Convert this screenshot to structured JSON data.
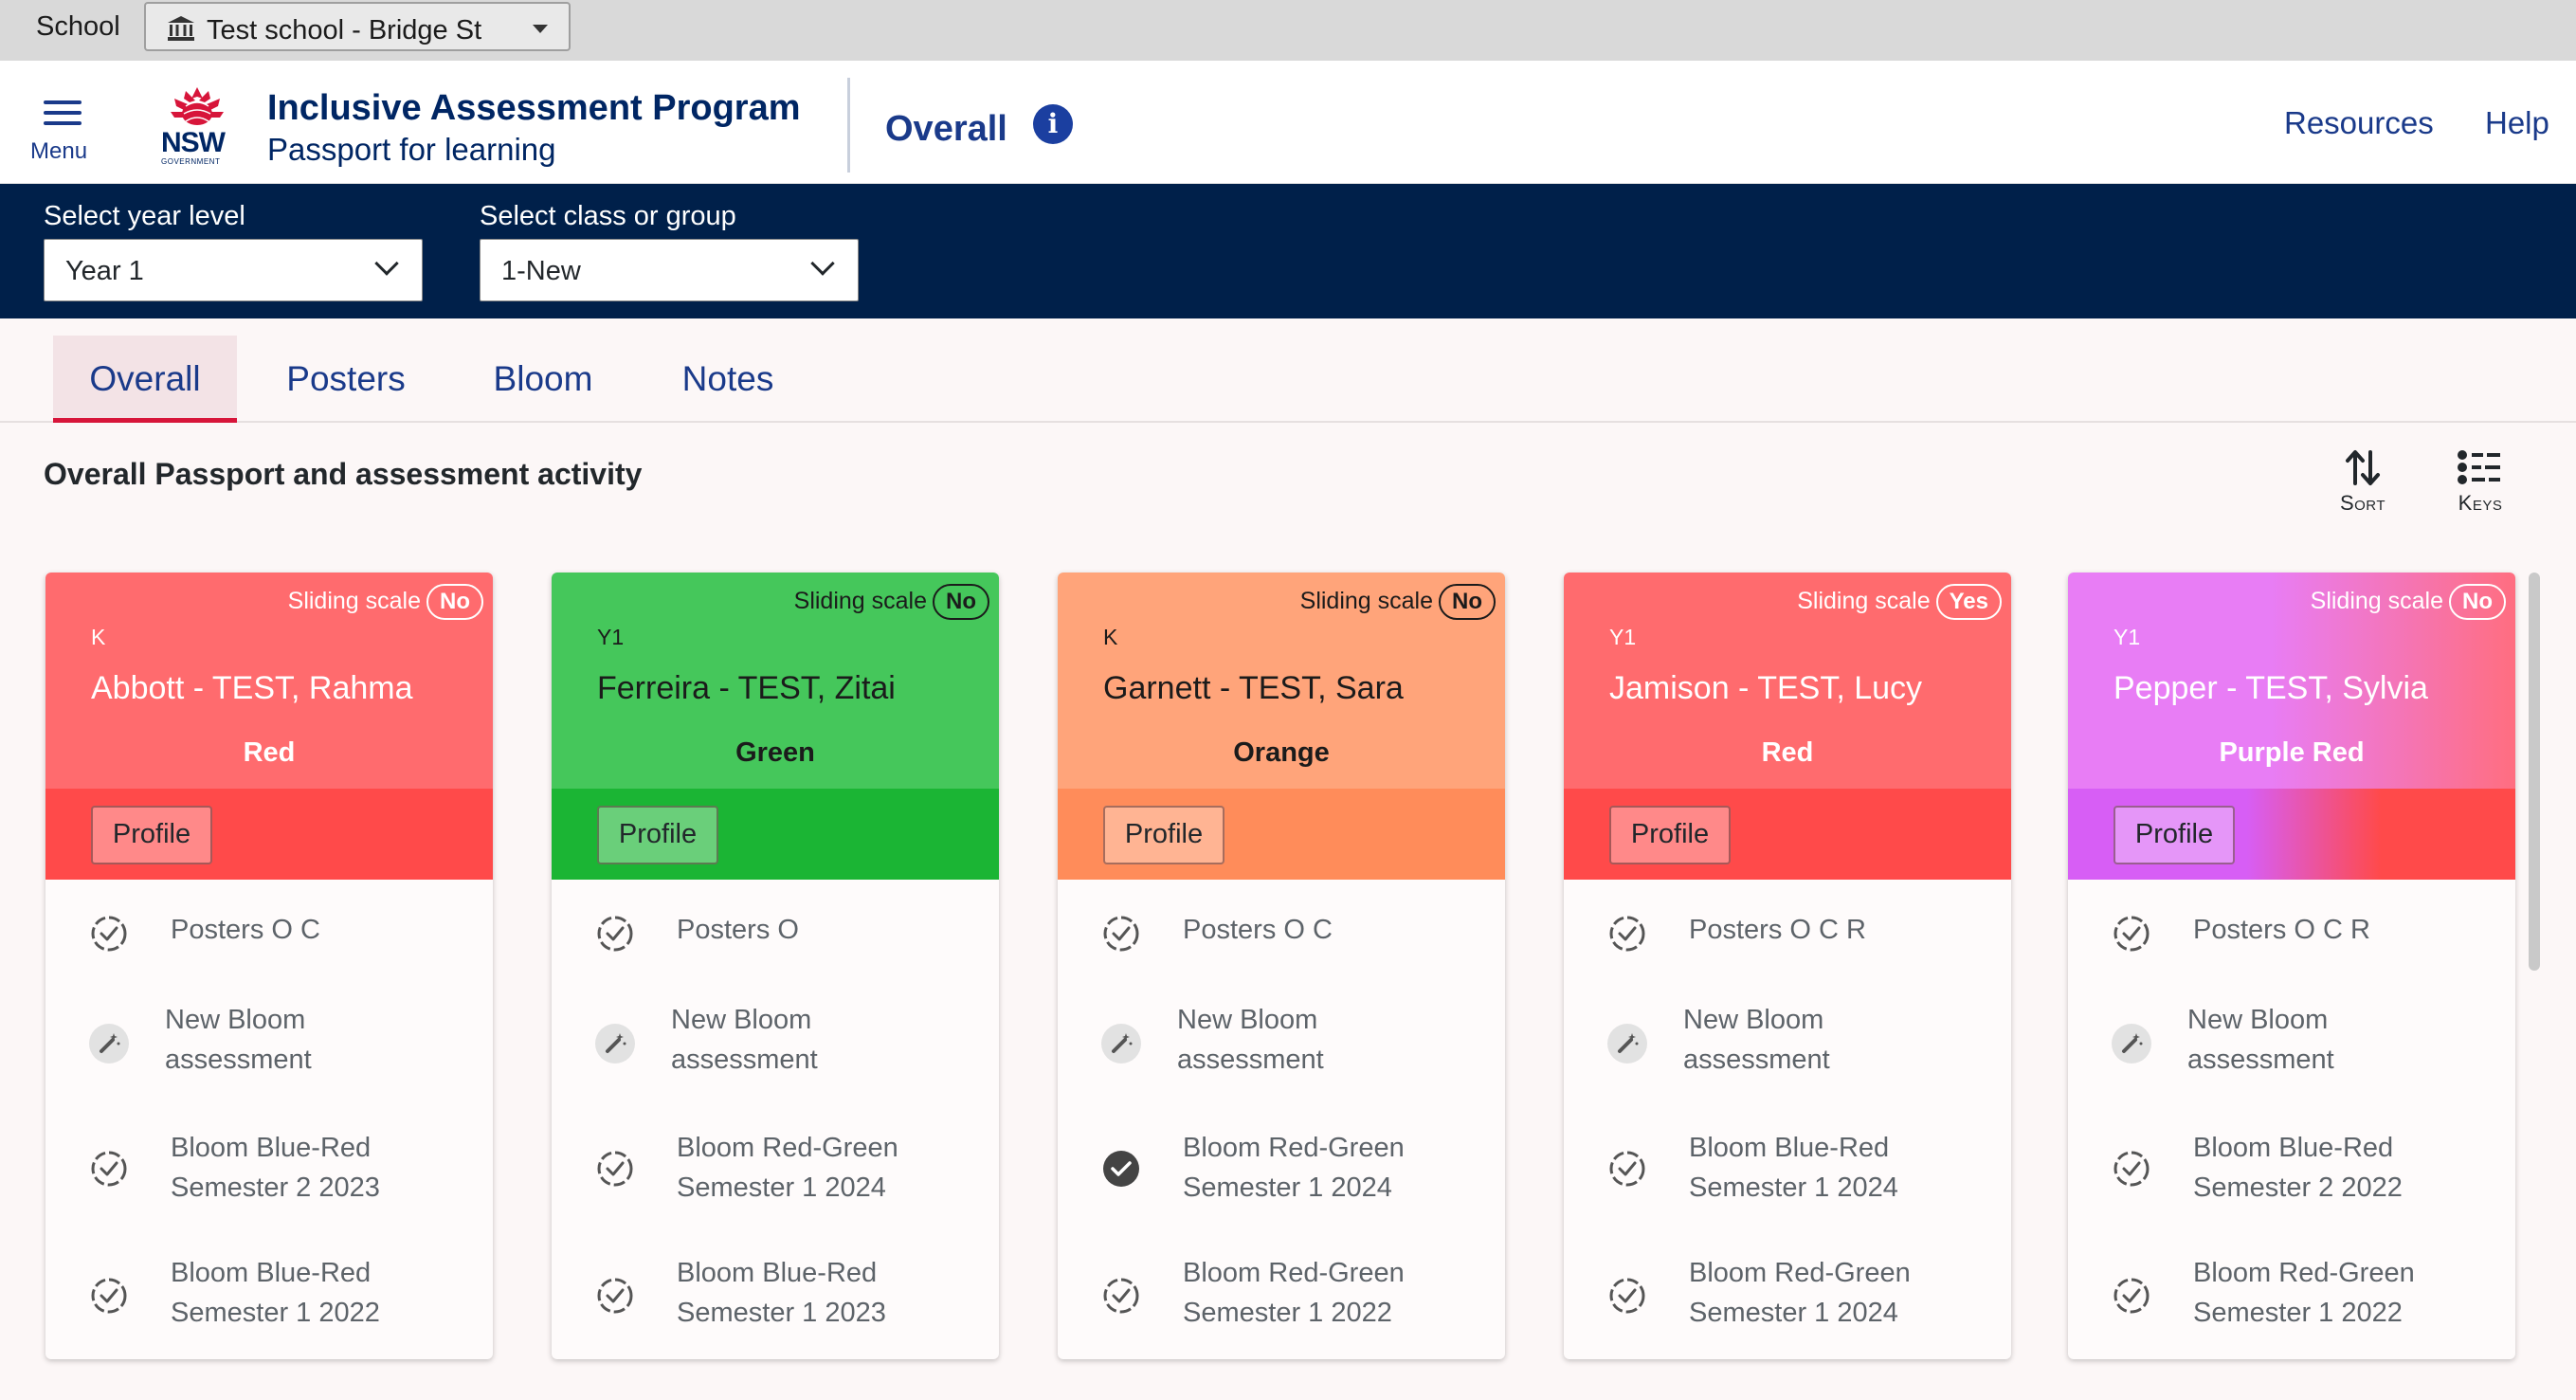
{
  "school_bar": {
    "label": "School",
    "selected_school": "Test school - Bridge St",
    "icon": "bank-icon"
  },
  "header": {
    "menu_label": "Menu",
    "logo_text": "NSW",
    "logo_subtext": "GOVERNMENT",
    "app_title": "Inclusive Assessment Program",
    "app_subtitle": "Passport for learning",
    "page_title": "Overall",
    "info_glyph": "i",
    "links": [
      "Resources",
      "Help"
    ]
  },
  "filters": {
    "year_label": "Select year level",
    "year_value": "Year 1",
    "class_label": "Select class or group",
    "class_value": "1-New"
  },
  "tabs": [
    {
      "label": "Overall",
      "active": true
    },
    {
      "label": "Posters",
      "active": false
    },
    {
      "label": "Bloom",
      "active": false
    },
    {
      "label": "Notes",
      "active": false
    }
  ],
  "section": {
    "title": "Overall Passport and assessment activity",
    "sort_label": "Sort",
    "keys_label": "Keys"
  },
  "cards": [
    {
      "sliding_label": "Sliding scale",
      "sliding_value": "No",
      "year": "K",
      "name": "Abbott - TEST, Rahma",
      "status": "Red",
      "profile_label": "Profile",
      "colors": {
        "top": "#ff6b6e",
        "bottom": "#ff4a4a",
        "status_text": "#ffffff"
      },
      "activities": [
        {
          "type": "pending",
          "lines": [
            "Posters O C"
          ]
        },
        {
          "type": "new",
          "lines": [
            "New Bloom",
            "assessment"
          ]
        },
        {
          "type": "pending",
          "lines": [
            "Bloom Blue-Red",
            "Semester 2 2023"
          ]
        },
        {
          "type": "pending",
          "lines": [
            "Bloom Blue-Red",
            "Semester 1 2022"
          ]
        }
      ]
    },
    {
      "sliding_label": "Sliding scale",
      "sliding_value": "No",
      "year": "Y1",
      "name": "Ferreira - TEST, Zitai",
      "status": "Green",
      "profile_label": "Profile",
      "colors": {
        "top": "#45c75b",
        "bottom": "#1bb534",
        "status_text": "#1b1b1b"
      },
      "activities": [
        {
          "type": "pending",
          "lines": [
            "Posters O"
          ]
        },
        {
          "type": "new",
          "lines": [
            "New Bloom",
            "assessment"
          ]
        },
        {
          "type": "pending",
          "lines": [
            "Bloom Red-Green",
            "Semester 1 2024"
          ]
        },
        {
          "type": "pending",
          "lines": [
            "Bloom Blue-Red",
            "Semester 1 2023"
          ]
        }
      ]
    },
    {
      "sliding_label": "Sliding scale",
      "sliding_value": "No",
      "year": "K",
      "name": "Garnett - TEST, Sara",
      "status": "Orange",
      "profile_label": "Profile",
      "colors": {
        "top": "#ffa47a",
        "bottom": "#ff8c5a",
        "status_text": "#1b1b1b"
      },
      "activities": [
        {
          "type": "pending",
          "lines": [
            "Posters O C"
          ]
        },
        {
          "type": "new",
          "lines": [
            "New Bloom",
            "assessment"
          ]
        },
        {
          "type": "done",
          "lines": [
            "Bloom Red-Green",
            "Semester 1 2024"
          ]
        },
        {
          "type": "pending",
          "lines": [
            "Bloom Red-Green",
            "Semester 1 2022"
          ]
        }
      ]
    },
    {
      "sliding_label": "Sliding scale",
      "sliding_value": "Yes",
      "year": "Y1",
      "name": "Jamison - TEST, Lucy",
      "status": "Red",
      "profile_label": "Profile",
      "colors": {
        "top": "#ff6b6e",
        "bottom": "#ff4a4a",
        "status_text": "#ffffff"
      },
      "activities": [
        {
          "type": "pending",
          "lines": [
            "Posters O C R"
          ]
        },
        {
          "type": "new",
          "lines": [
            "New Bloom",
            "assessment"
          ]
        },
        {
          "type": "pending",
          "lines": [
            "Bloom Blue-Red",
            "Semester 1 2024"
          ]
        },
        {
          "type": "pending",
          "lines": [
            "Bloom Red-Green",
            "Semester 1 2024"
          ]
        }
      ]
    },
    {
      "sliding_label": "Sliding scale",
      "sliding_value": "No",
      "year": "Y1",
      "name": "Pepper - TEST, Sylvia",
      "status": "Purple Red",
      "profile_label": "Profile",
      "colors": {
        "top": "#e87df5",
        "mid": "#ff6e80",
        "bottom": "#d75ef5",
        "bottom_end": "#ff4a4a",
        "status_text": "#ffffff",
        "gradient": "purple-to-red"
      },
      "activities": [
        {
          "type": "pending",
          "lines": [
            "Posters O C R"
          ]
        },
        {
          "type": "new",
          "lines": [
            "New Bloom",
            "assessment"
          ]
        },
        {
          "type": "pending",
          "lines": [
            "Bloom Blue-Red",
            "Semester 2 2022"
          ]
        },
        {
          "type": "pending",
          "lines": [
            "Bloom Red-Green",
            "Semester 1 2022"
          ]
        }
      ]
    }
  ]
}
